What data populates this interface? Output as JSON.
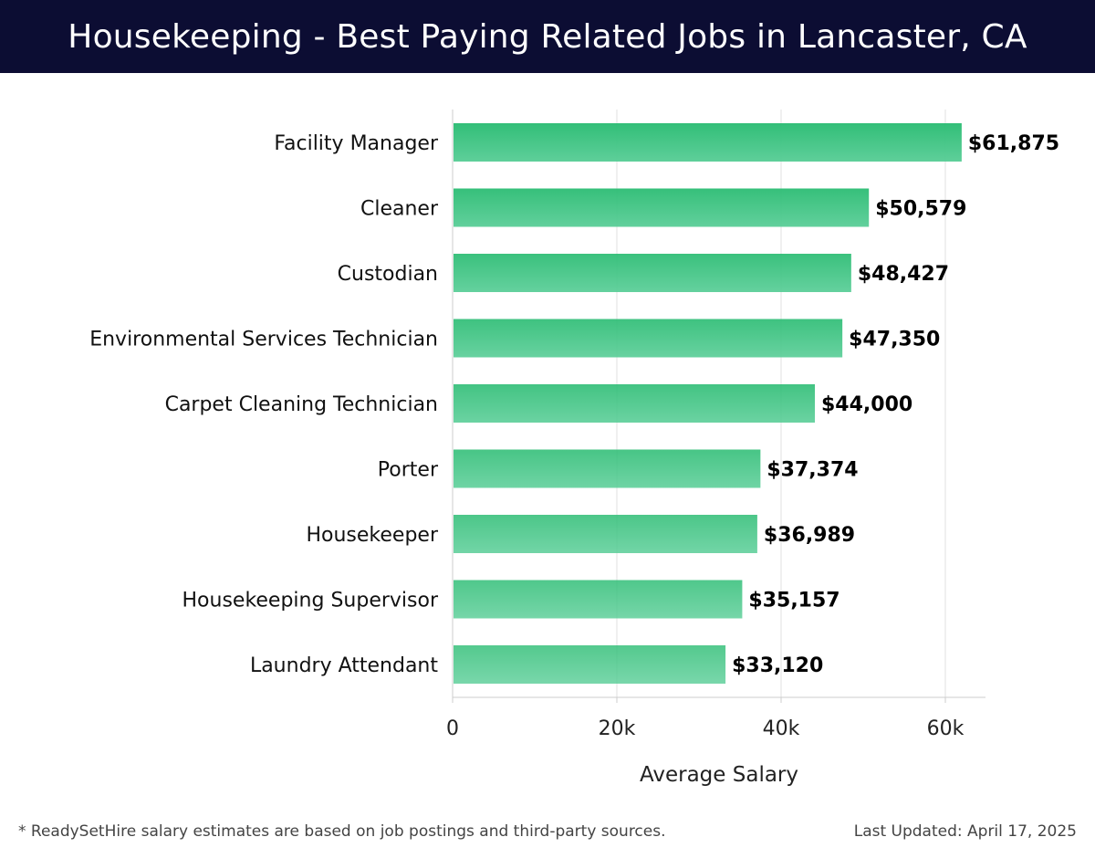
{
  "header": {
    "title": "Housekeeping - Best Paying Related Jobs in Lancaster, CA"
  },
  "footer": {
    "note": "* ReadySetHire salary estimates are based on job postings and third-party sources.",
    "updated": "Last Updated: April 17, 2025"
  },
  "colors": {
    "header_bg": "#0c0d33",
    "bar_top": "#2ebd75",
    "bar_bottom": "#5bce98",
    "grid": "#e2e2e2",
    "axis": "#cccccc"
  },
  "chart_data": {
    "type": "bar",
    "orientation": "horizontal",
    "categories": [
      "Facility Manager",
      "Cleaner",
      "Custodian",
      "Environmental Services Technician",
      "Carpet Cleaning Technician",
      "Porter",
      "Housekeeper",
      "Housekeeping Supervisor",
      "Laundry Attendant"
    ],
    "values": [
      61875,
      50579,
      48427,
      47350,
      44000,
      37374,
      36989,
      35157,
      33120
    ],
    "data_labels": [
      "$61,875",
      "$50,579",
      "$48,427",
      "$47,350",
      "$44,000",
      "$37,374",
      "$36,989",
      "$35,157",
      "$33,120"
    ],
    "xlabel": "Average Salary",
    "ylabel": "",
    "xlim": [
      0,
      65000
    ],
    "xticks": [
      0,
      20000,
      40000,
      60000
    ],
    "xtick_labels": [
      "0",
      "20k",
      "40k",
      "60k"
    ],
    "grid": "vertical"
  }
}
